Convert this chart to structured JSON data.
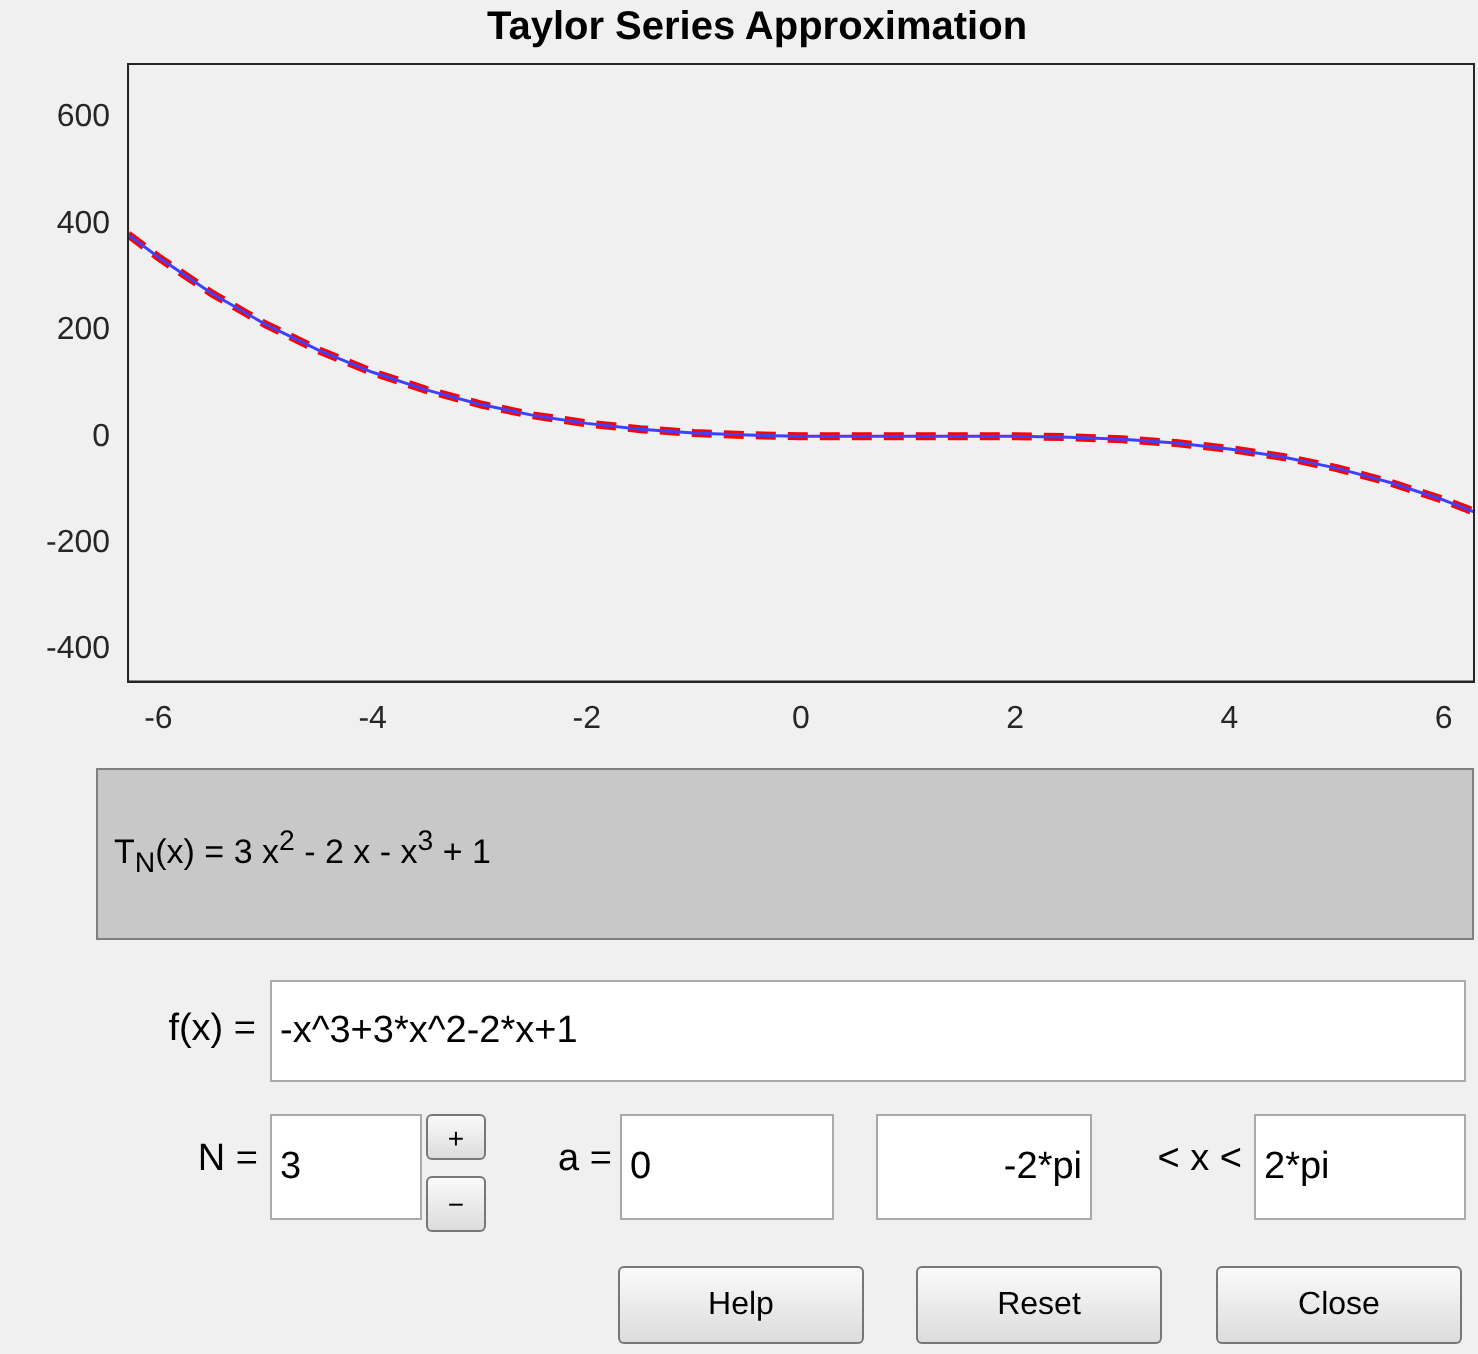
{
  "chart_data": {
    "type": "line",
    "title": "Taylor Series Approximation",
    "x": [
      -6.2832,
      -6,
      -5.5,
      -5,
      -4.5,
      -4,
      -3.5,
      -3,
      -2.5,
      -2,
      -1.5,
      -1,
      -0.5,
      0,
      0.5,
      1,
      1.5,
      2,
      2.5,
      3,
      3.5,
      4,
      4.5,
      5,
      5.5,
      6,
      6.2832
    ],
    "xlim": [
      -6.2832,
      6.2832
    ],
    "xticks": [
      -6,
      -4,
      -2,
      0,
      2,
      4,
      6
    ],
    "ylim": [
      -460,
      700
    ],
    "yticks": [
      -400,
      -200,
      0,
      200,
      400,
      600
    ],
    "series": [
      {
        "color": "#4040ff",
        "line_style": "solid",
        "values": [
          380,
          337,
          269,
          211,
          162,
          121,
          88,
          61,
          40,
          25,
          14,
          7,
          3,
          1,
          1,
          1,
          1,
          1,
          -1,
          -5,
          -12,
          -23,
          -38,
          -59,
          -86,
          -119,
          -141
        ]
      },
      {
        "color": "#ff0000",
        "line_style": "dashed",
        "values": [
          380,
          337,
          269,
          211,
          162,
          121,
          88,
          61,
          40,
          25,
          14,
          7,
          3,
          1,
          1,
          1,
          1,
          1,
          -1,
          -5,
          -12,
          -23,
          -38,
          -59,
          -86,
          -119,
          -141
        ]
      }
    ],
    "annotations": [
      "T$_{N}$(x) = 3 x$^{2}$ - 2 x - x$^{3}$ + 1",
      "f(x) =",
      "-x^3+3*x^2-2*x+1",
      "N =",
      "3",
      "+",
      "−",
      "a =",
      "0",
      "-2*pi",
      "< x <",
      "2*pi",
      "Help",
      "Reset",
      "Close"
    ]
  }
}
